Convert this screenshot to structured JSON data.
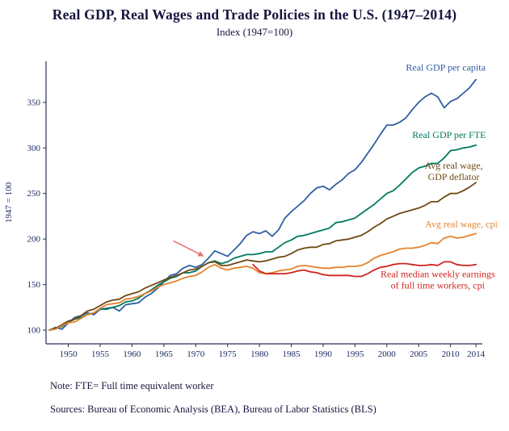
{
  "title": "Real GDP, Real Wages and Trade Policies in the U.S. (1947–2014)",
  "subtitle": "Index (1947=100)",
  "note": "Note: FTE= Full time equivalent worker",
  "sources": "Sources: Bureau of Economic Analysis (BEA), Bureau of Labor Statistics (BLS)",
  "colors": {
    "axis": "#2b2b50",
    "tick_text": "#1c2a63",
    "title_text": "#15153f",
    "arrow": "#e57373"
  },
  "chart_data": {
    "type": "line",
    "title": "Real GDP, Real Wages and Trade Policies in the U.S. (1947–2014)",
    "subtitle": "Index (1947=100)",
    "xlabel": "",
    "ylabel": "1947 = 100",
    "xlim": [
      1946.5,
      2015
    ],
    "ylim": [
      85,
      395
    ],
    "xticks": [
      1950,
      1955,
      1960,
      1965,
      1970,
      1975,
      1980,
      1985,
      1990,
      1995,
      2000,
      2005,
      2010,
      2014
    ],
    "yticks": [
      100,
      150,
      200,
      250,
      300,
      350
    ],
    "grid": false,
    "legend_position": "inline-annotations",
    "series": [
      {
        "name": "Real GDP per capita",
        "color": "#2f5fa3",
        "start_year": 1947,
        "values": [
          100,
          103,
          101,
          108,
          114,
          116,
          119,
          117,
          123,
          124,
          125,
          121,
          128,
          129,
          130,
          136,
          140,
          146,
          153,
          160,
          162,
          168,
          171,
          169,
          172,
          179,
          187,
          184,
          181,
          188,
          195,
          204,
          208,
          206,
          209,
          203,
          210,
          223,
          230,
          236,
          242,
          250,
          256,
          258,
          254,
          260,
          265,
          272,
          276,
          284,
          294,
          304,
          315,
          325,
          325,
          328,
          333,
          342,
          350,
          356,
          360,
          356,
          344,
          351,
          354,
          360,
          366,
          375
        ]
      },
      {
        "name": "Real GDP per FTE",
        "color": "#00795f",
        "start_year": 1947,
        "values": [
          100,
          102,
          104,
          109,
          112,
          114,
          117,
          119,
          123,
          123,
          125,
          127,
          131,
          132,
          135,
          140,
          144,
          149,
          153,
          157,
          159,
          163,
          163,
          165,
          170,
          174,
          176,
          173,
          175,
          179,
          181,
          183,
          183,
          184,
          186,
          186,
          191,
          196,
          199,
          203,
          204,
          206,
          208,
          210,
          212,
          218,
          219,
          221,
          223,
          228,
          233,
          238,
          244,
          250,
          253,
          259,
          266,
          273,
          278,
          280,
          283,
          283,
          289,
          297,
          298,
          300,
          301,
          303
        ]
      },
      {
        "name": "Avg real wage, GDP deflator",
        "color": "#6e4a14",
        "start_year": 1947,
        "values": [
          100,
          102,
          106,
          110,
          112,
          116,
          121,
          123,
          127,
          131,
          133,
          134,
          138,
          140,
          142,
          146,
          149,
          152,
          155,
          158,
          160,
          163,
          166,
          167,
          170,
          174,
          175,
          171,
          171,
          173,
          175,
          177,
          176,
          175,
          176,
          178,
          180,
          181,
          184,
          188,
          190,
          191,
          191,
          194,
          195,
          198,
          199,
          200,
          202,
          204,
          208,
          213,
          217,
          222,
          225,
          228,
          230,
          232,
          234,
          237,
          241,
          241,
          246,
          250,
          250,
          253,
          257,
          262
        ]
      },
      {
        "name": "Avg real wage, cpi",
        "color": "#e5832e",
        "start_year": 1947,
        "values": [
          100,
          101,
          105,
          108,
          109,
          113,
          117,
          119,
          124,
          128,
          129,
          130,
          134,
          135,
          137,
          140,
          143,
          147,
          150,
          152,
          154,
          157,
          159,
          160,
          164,
          169,
          172,
          168,
          166,
          168,
          169,
          170,
          168,
          163,
          162,
          163,
          165,
          166,
          167,
          170,
          171,
          170,
          169,
          168,
          168,
          169,
          169,
          170,
          170,
          171,
          174,
          179,
          182,
          184,
          186,
          189,
          190,
          190,
          191,
          193,
          196,
          195,
          201,
          203,
          201,
          202,
          204,
          206
        ]
      },
      {
        "name": "Real median weekly earnings of full time workers, cpi",
        "color": "#d02420",
        "start_year": 1979,
        "values": [
          172,
          165,
          162,
          162,
          162,
          162,
          163,
          165,
          166,
          164,
          163,
          161,
          160,
          160,
          160,
          160,
          159,
          159,
          162,
          166,
          169,
          170,
          172,
          173,
          173,
          172,
          171,
          171,
          172,
          171,
          175,
          175,
          172,
          171,
          171,
          172
        ]
      }
    ],
    "annotations": [
      {
        "text": "Real GDP per capita",
        "x": 2003,
        "y": 385,
        "color": "#2f5fa3",
        "anchor": "start"
      },
      {
        "text": "Real GDP per FTE",
        "x": 2004,
        "y": 311,
        "color": "#00795f",
        "anchor": "start"
      },
      {
        "text": "Avg real wage,\nGDP deflator",
        "x": 2010.5,
        "y": 277,
        "color": "#6e4a14",
        "anchor": "middle"
      },
      {
        "text": "Avg real wage, cpi",
        "x": 2006,
        "y": 213,
        "color": "#e5832e",
        "anchor": "start"
      },
      {
        "text": "Real median weekly earnings\nof full time workers, cpi",
        "x": 2008,
        "y": 158,
        "color": "#d02420",
        "anchor": "middle"
      }
    ],
    "arrow": {
      "from": [
        1966.5,
        198
      ],
      "to": [
        1971.3,
        181
      ]
    }
  }
}
